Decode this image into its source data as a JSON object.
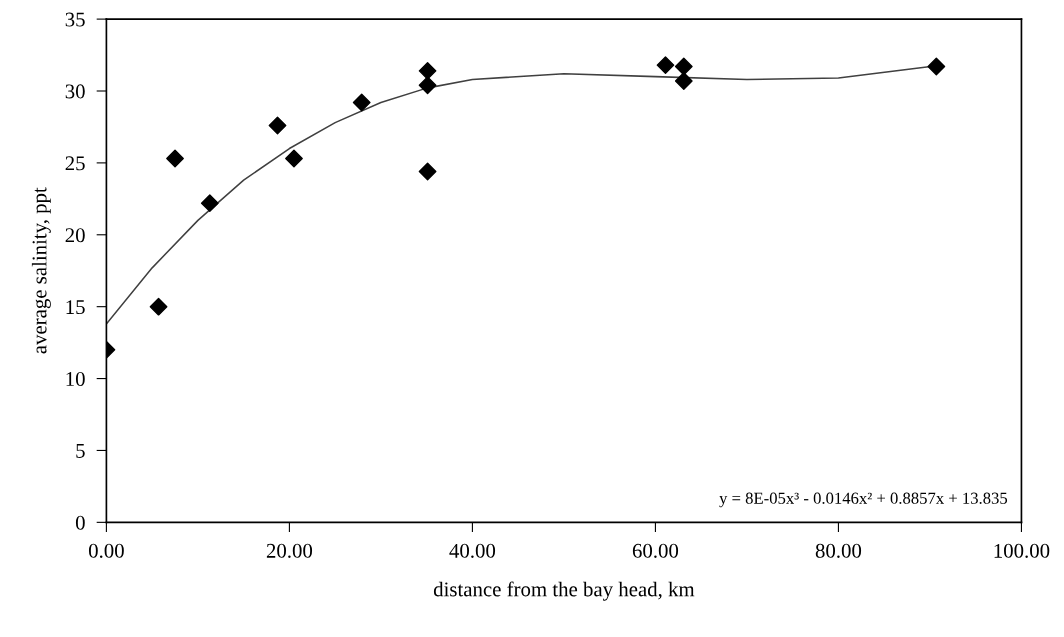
{
  "chart_data": {
    "type": "scatter",
    "xlabel": "distance from the bay head, km",
    "ylabel": "average salinity, ppt",
    "xlim": [
      0,
      100
    ],
    "ylim": [
      0,
      35
    ],
    "xticks": [
      {
        "value": 0,
        "label": "0.00"
      },
      {
        "value": 20,
        "label": "20.00"
      },
      {
        "value": 40,
        "label": "40.00"
      },
      {
        "value": 60,
        "label": "60.00"
      },
      {
        "value": 80,
        "label": "80.00"
      },
      {
        "value": 100,
        "label": "100.00"
      }
    ],
    "yticks": [
      0,
      5,
      10,
      15,
      20,
      25,
      30,
      35
    ],
    "grid": false,
    "marker": "diamond",
    "series": [
      {
        "color": "#000000",
        "x": [
          0,
          5.7,
          7.5,
          11.3,
          18.7,
          20.5,
          27.9,
          35.1,
          35.1,
          35.1,
          61.1,
          63.1,
          63.1,
          90.7
        ],
        "values": [
          12.0,
          15.0,
          25.3,
          22.2,
          27.6,
          25.3,
          29.2,
          31.4,
          30.4,
          24.4,
          31.8,
          31.7,
          30.7,
          31.7
        ]
      },
      {
        "type": "line",
        "color": "#404040",
        "marker": "none",
        "line_style": "solid",
        "x": [
          0,
          5,
          10,
          15,
          20,
          25,
          30,
          35,
          40,
          50,
          60,
          70,
          80,
          90
        ],
        "values": [
          13.8,
          17.7,
          21.0,
          23.8,
          26.0,
          27.8,
          29.2,
          30.2,
          30.8,
          31.2,
          31.0,
          30.8,
          30.9,
          31.7
        ]
      }
    ],
    "annotations": [
      "y = 8E-05x³ - 0.0146x² + 0.8857x + 13.835"
    ]
  }
}
